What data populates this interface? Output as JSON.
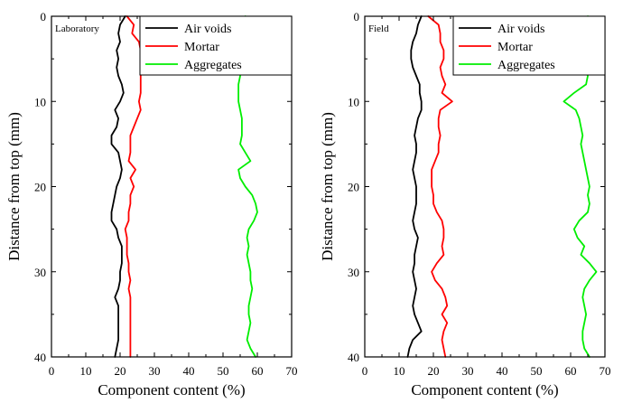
{
  "chart_data": [
    {
      "type": "line",
      "panel_label": "Laboratory",
      "xlabel": "Component content (%)",
      "ylabel": "Distance from top (mm)",
      "xlim": [
        0,
        70
      ],
      "ylim": [
        40,
        0
      ],
      "x_ticks": [
        "0",
        "10",
        "20",
        "30",
        "40",
        "50",
        "60",
        "70"
      ],
      "y_ticks": [
        "0",
        "10",
        "20",
        "30",
        "40"
      ],
      "legend_placement": "top-right",
      "series": [
        {
          "name": "Air voids",
          "color": "#000000",
          "x": [
            21.5,
            20,
            19.5,
            20,
            19,
            19.5,
            19,
            19.5,
            20.5,
            21,
            20,
            18.5,
            19.5,
            19,
            17.5,
            17.5,
            19.5,
            20,
            20.5,
            20,
            19,
            18.5,
            18,
            17.5,
            17.5,
            19,
            19.5,
            20.5,
            20.5,
            20.5,
            20,
            20,
            19.5,
            18.5,
            19.5,
            19.5,
            19.5,
            19.5,
            19.5,
            19,
            18.5
          ],
          "y": [
            0,
            1,
            2,
            3,
            4,
            5,
            6,
            7,
            8,
            9,
            10,
            11,
            12,
            13,
            14,
            15,
            16,
            17,
            18,
            19,
            20,
            21,
            22,
            23,
            24,
            25,
            26,
            27,
            28,
            29,
            30,
            31,
            32,
            33,
            34,
            35,
            36,
            37,
            38,
            39,
            40
          ]
        },
        {
          "name": "Mortar",
          "color": "#ff0000",
          "x": [
            22,
            24,
            23.5,
            25.5,
            26,
            26,
            26.5,
            26,
            26,
            26,
            25.5,
            26,
            25,
            24,
            23,
            23,
            23,
            22.5,
            24.5,
            23,
            24,
            23,
            23,
            22.5,
            22.5,
            21.5,
            22,
            22,
            22,
            22.5,
            22.5,
            23,
            22.5,
            23,
            23,
            23,
            23,
            23,
            23,
            23,
            23
          ],
          "y": [
            0,
            1,
            2,
            3,
            4,
            5,
            6,
            7,
            8,
            9,
            10,
            11,
            12,
            13,
            14,
            15,
            16,
            17,
            18,
            19,
            20,
            21,
            22,
            23,
            24,
            25,
            26,
            27,
            28,
            29,
            30,
            31,
            32,
            33,
            34,
            35,
            36,
            37,
            38,
            39,
            40
          ]
        },
        {
          "name": "Aggregates",
          "color": "#00ee00",
          "x": [
            56.5,
            56,
            56.5,
            56.5,
            56,
            55.5,
            55.5,
            55,
            54.5,
            54.5,
            54.5,
            55,
            55.5,
            55.5,
            55.5,
            55,
            56.5,
            58,
            54.5,
            55,
            56.5,
            58.5,
            59.5,
            60,
            59,
            57.5,
            57,
            57.5,
            57,
            57.5,
            58,
            58,
            58.5,
            58,
            57.5,
            57.5,
            58,
            57.5,
            57,
            58,
            59.5
          ],
          "y": [
            0,
            1,
            2,
            3,
            4,
            5,
            6,
            7,
            8,
            9,
            10,
            11,
            12,
            13,
            14,
            15,
            16,
            17,
            18,
            19,
            20,
            21,
            22,
            23,
            24,
            25,
            26,
            27,
            28,
            29,
            30,
            31,
            32,
            33,
            34,
            35,
            36,
            37,
            38,
            39,
            40
          ]
        }
      ]
    },
    {
      "type": "line",
      "panel_label": "Field",
      "xlabel": "Component content (%)",
      "ylabel": "Distance from top (mm)",
      "xlim": [
        0,
        70
      ],
      "ylim": [
        40,
        0
      ],
      "x_ticks": [
        "0",
        "10",
        "20",
        "30",
        "40",
        "50",
        "60",
        "70"
      ],
      "y_ticks": [
        "0",
        "10",
        "20",
        "30",
        "40"
      ],
      "legend_placement": "top-right",
      "series": [
        {
          "name": "Air voids",
          "color": "#000000",
          "x": [
            16.5,
            15.5,
            15,
            14,
            13.5,
            13.5,
            14,
            15,
            16,
            16,
            16.5,
            16.5,
            15.5,
            15,
            14.5,
            15,
            15,
            14.5,
            14,
            14.5,
            15,
            15,
            15,
            14.5,
            14,
            14.5,
            15.5,
            15,
            14.5,
            14.5,
            14,
            14.5,
            15,
            14.5,
            14,
            14.5,
            15.5,
            16.5,
            14,
            13,
            12.5
          ],
          "y": [
            0,
            1,
            2,
            3,
            4,
            5,
            6,
            7,
            8,
            9,
            10,
            11,
            12,
            13,
            14,
            15,
            16,
            17,
            18,
            19,
            20,
            21,
            22,
            23,
            24,
            25,
            26,
            27,
            28,
            29,
            30,
            31,
            32,
            33,
            34,
            35,
            36,
            37,
            38,
            39,
            40
          ]
        },
        {
          "name": "Mortar",
          "color": "#ff0000",
          "x": [
            18.5,
            21.5,
            22,
            22,
            23,
            23,
            22,
            22.5,
            23.5,
            22.5,
            25.5,
            22,
            21.5,
            21.5,
            22,
            21.5,
            21.5,
            20.5,
            19.5,
            19.5,
            19.5,
            20,
            20,
            21,
            22.5,
            23,
            23,
            22.5,
            23,
            21,
            19.5,
            20.5,
            22.5,
            23.5,
            24,
            22.5,
            24,
            23,
            22.5,
            23,
            23.5
          ],
          "y": [
            0,
            1,
            2,
            3,
            4,
            5,
            6,
            7,
            8,
            9,
            10,
            11,
            12,
            13,
            14,
            15,
            16,
            17,
            18,
            19,
            20,
            21,
            22,
            23,
            24,
            25,
            26,
            27,
            28,
            29,
            30,
            31,
            32,
            33,
            34,
            35,
            36,
            37,
            38,
            39,
            40
          ]
        },
        {
          "name": "Aggregates",
          "color": "#00ee00",
          "x": [
            65,
            64,
            64,
            65,
            64.5,
            64.5,
            64,
            65,
            64.5,
            61,
            58,
            61.5,
            62.5,
            63,
            63.5,
            63,
            63.5,
            64,
            64.5,
            65,
            65.5,
            65,
            65.5,
            65,
            62.5,
            61,
            62,
            64,
            63,
            65.5,
            67.5,
            65.5,
            64,
            63.5,
            64,
            64.5,
            64,
            63.5,
            63.5,
            64,
            65.5
          ],
          "y": [
            0,
            1,
            2,
            3,
            4,
            5,
            6,
            7,
            8,
            9,
            10,
            11,
            12,
            13,
            14,
            15,
            16,
            17,
            18,
            19,
            20,
            21,
            22,
            23,
            24,
            25,
            26,
            27,
            28,
            29,
            30,
            31,
            32,
            33,
            34,
            35,
            36,
            37,
            38,
            39,
            40
          ]
        }
      ]
    }
  ]
}
